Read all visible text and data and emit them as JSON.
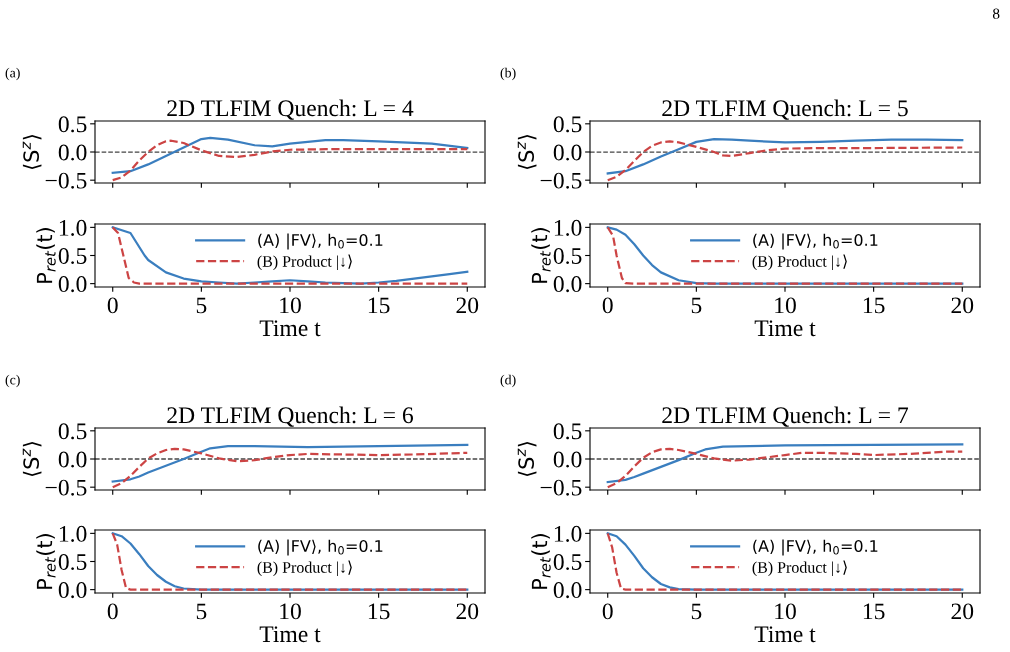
{
  "chart_data": [
    {
      "type": "line",
      "title": "2D TLFIM Quench: L = 4",
      "ylabel": "⟨S$^{z}$⟩",
      "annotations": [
        "(a)",
        "8"
      ],
      "xlim": [
        -1,
        21
      ],
      "xticks": [
        0,
        5,
        10,
        15,
        20
      ],
      "ylim": [
        -0.55,
        0.55
      ],
      "yticks": [
        {
          "value": -0.5,
          "label": "−0.5"
        },
        {
          "value": 0,
          "label": "0.0"
        },
        {
          "value": 0.5,
          "label": "0.5"
        }
      ],
      "tick_labels": "y",
      "grid": false,
      "legend": false,
      "ref_lines": [
        {
          "axis": "y",
          "value": 0,
          "color": "#444444",
          "line_style": "dashed"
        }
      ],
      "series": [
        {
          "color": "#3a7ebf",
          "line_style": "solid",
          "x": [
            0,
            1,
            2,
            3,
            4,
            5,
            5.5,
            6.5,
            8,
            9,
            10,
            12,
            13,
            15,
            18,
            20
          ],
          "values": [
            -0.37,
            -0.34,
            -0.22,
            -0.07,
            0.08,
            0.23,
            0.25,
            0.22,
            0.12,
            0.1,
            0.15,
            0.21,
            0.21,
            0.19,
            0.15,
            0.07
          ]
        },
        {
          "color": "#cc4444",
          "line_style": "dashed",
          "x": [
            0,
            0.5,
            1,
            1.5,
            2,
            2.5,
            3,
            3.3,
            4,
            5,
            6,
            7,
            8,
            9,
            10,
            12,
            20
          ],
          "values": [
            -0.5,
            -0.45,
            -0.33,
            -0.15,
            0.0,
            0.12,
            0.19,
            0.2,
            0.16,
            0.03,
            -0.07,
            -0.09,
            -0.05,
            0.01,
            0.04,
            0.05,
            0.05
          ]
        }
      ]
    },
    {
      "type": "line",
      "ylabel": "P$_{ret}$(t)",
      "xlabel": "Time t",
      "xlim": [
        -1,
        21
      ],
      "xticks": [
        0,
        5,
        10,
        15,
        20
      ],
      "ylim": [
        -0.06,
        1.06
      ],
      "yticks": [
        {
          "value": 0,
          "label": "0.0"
        },
        {
          "value": 0.5,
          "label": "0.5"
        },
        {
          "value": 1,
          "label": "1.0"
        }
      ],
      "grid": false,
      "legend": "top",
      "series": [
        {
          "name": "(A) |FV⟩, h$_{0}$=0.1",
          "color": "#3a7ebf",
          "line_style": "solid",
          "x": [
            0,
            1,
            1.8,
            2,
            3,
            4,
            5,
            6,
            7,
            8,
            9,
            10,
            11,
            12,
            13,
            14,
            15,
            16,
            17,
            18,
            19,
            20
          ],
          "values": [
            1.0,
            0.9,
            0.5,
            0.42,
            0.2,
            0.09,
            0.04,
            0.02,
            0.0,
            0.02,
            0.04,
            0.06,
            0.04,
            0.02,
            0.01,
            0.0,
            0.02,
            0.05,
            0.09,
            0.13,
            0.17,
            0.21
          ]
        },
        {
          "name": "(B) Product |↓⟩",
          "color": "#cc4444",
          "line_style": "dashed",
          "x": [
            0,
            0.3,
            0.6,
            0.9,
            1.2,
            1.5,
            20
          ],
          "values": [
            1.0,
            0.9,
            0.5,
            0.1,
            0.02,
            0.0,
            0.0
          ]
        }
      ]
    },
    {
      "type": "line",
      "title": "2D TLFIM Quench: L = 5",
      "ylabel": "⟨S$^{z}$⟩",
      "annotations": [
        "(b)"
      ],
      "xlim": [
        -1,
        21
      ],
      "xticks": [
        0,
        5,
        10,
        15,
        20
      ],
      "ylim": [
        -0.55,
        0.55
      ],
      "yticks": [
        {
          "value": -0.5,
          "label": "−0.5"
        },
        {
          "value": 0,
          "label": "0.0"
        },
        {
          "value": 0.5,
          "label": "0.5"
        }
      ],
      "tick_labels": "y",
      "grid": false,
      "legend": false,
      "ref_lines": [
        {
          "axis": "y",
          "value": 0,
          "color": "#444444",
          "line_style": "dashed"
        }
      ],
      "series": [
        {
          "color": "#3a7ebf",
          "line_style": "solid",
          "x": [
            0,
            1,
            2,
            3,
            4,
            5,
            6,
            7,
            8,
            10,
            12,
            14,
            16,
            18,
            20
          ],
          "values": [
            -0.38,
            -0.34,
            -0.22,
            -0.08,
            0.05,
            0.18,
            0.23,
            0.22,
            0.2,
            0.17,
            0.18,
            0.2,
            0.22,
            0.22,
            0.21
          ]
        },
        {
          "color": "#cc4444",
          "line_style": "dashed",
          "x": [
            0,
            0.5,
            1,
            1.5,
            2,
            2.5,
            3,
            3.5,
            4,
            5,
            6,
            6.5,
            7,
            8,
            9,
            10,
            12,
            15,
            20
          ],
          "values": [
            -0.5,
            -0.44,
            -0.32,
            -0.16,
            0.0,
            0.11,
            0.17,
            0.19,
            0.17,
            0.09,
            0.0,
            -0.06,
            -0.07,
            -0.02,
            0.03,
            0.06,
            0.07,
            0.07,
            0.08
          ]
        }
      ]
    },
    {
      "type": "line",
      "ylabel": "P$_{ret}$(t)",
      "xlabel": "Time t",
      "xlim": [
        -1,
        21
      ],
      "xticks": [
        0,
        5,
        10,
        15,
        20
      ],
      "ylim": [
        -0.06,
        1.06
      ],
      "yticks": [
        {
          "value": 0,
          "label": "0.0"
        },
        {
          "value": 0.5,
          "label": "0.5"
        },
        {
          "value": 1,
          "label": "1.0"
        }
      ],
      "grid": false,
      "legend": "top",
      "series": [
        {
          "name": "(A) |FV⟩, h$_{0}$=0.1",
          "color": "#3a7ebf",
          "line_style": "solid",
          "x": [
            0,
            0.5,
            1,
            1.5,
            2,
            2.5,
            3,
            4,
            5,
            6,
            20
          ],
          "values": [
            1.0,
            0.96,
            0.87,
            0.7,
            0.5,
            0.33,
            0.2,
            0.06,
            0.01,
            0.0,
            0.0
          ]
        },
        {
          "name": "(B) Product |↓⟩",
          "color": "#cc4444",
          "line_style": "dashed",
          "x": [
            0,
            0.3,
            0.5,
            0.8,
            1,
            1.5,
            20
          ],
          "values": [
            1.0,
            0.85,
            0.5,
            0.1,
            0.01,
            0.0,
            0.0
          ]
        }
      ]
    },
    {
      "type": "line",
      "title": "2D TLFIM Quench: L = 6",
      "ylabel": "⟨S$^{z}$⟩",
      "annotations": [
        "(c)"
      ],
      "xlim": [
        -1,
        21
      ],
      "xticks": [
        0,
        5,
        10,
        15,
        20
      ],
      "ylim": [
        -0.55,
        0.55
      ],
      "yticks": [
        {
          "value": -0.5,
          "label": "−0.5"
        },
        {
          "value": 0,
          "label": "0.0"
        },
        {
          "value": 0.5,
          "label": "0.5"
        }
      ],
      "tick_labels": "y",
      "grid": false,
      "legend": false,
      "ref_lines": [
        {
          "axis": "y",
          "value": 0,
          "color": "#444444",
          "line_style": "dashed"
        }
      ],
      "series": [
        {
          "color": "#3a7ebf",
          "line_style": "solid",
          "x": [
            0,
            1,
            1.5,
            2,
            3,
            4,
            5,
            5.5,
            6.5,
            8,
            11,
            15,
            20
          ],
          "values": [
            -0.4,
            -0.36,
            -0.31,
            -0.24,
            -0.12,
            0.0,
            0.13,
            0.19,
            0.23,
            0.23,
            0.21,
            0.23,
            0.25
          ]
        },
        {
          "color": "#cc4444",
          "line_style": "dashed",
          "x": [
            0,
            0.5,
            1,
            1.5,
            2,
            2.5,
            3,
            3.5,
            4,
            5,
            6,
            7,
            8,
            9,
            10,
            11,
            13,
            15,
            17,
            20
          ],
          "values": [
            -0.5,
            -0.43,
            -0.3,
            -0.14,
            0.01,
            0.1,
            0.16,
            0.18,
            0.17,
            0.1,
            0.01,
            -0.04,
            -0.02,
            0.03,
            0.07,
            0.09,
            0.08,
            0.07,
            0.08,
            0.11
          ]
        }
      ]
    },
    {
      "type": "line",
      "ylabel": "P$_{ret}$(t)",
      "xlabel": "Time t",
      "xlim": [
        -1,
        21
      ],
      "xticks": [
        0,
        5,
        10,
        15,
        20
      ],
      "ylim": [
        -0.06,
        1.06
      ],
      "yticks": [
        {
          "value": 0,
          "label": "0.0"
        },
        {
          "value": 0.5,
          "label": "0.5"
        },
        {
          "value": 1,
          "label": "1.0"
        }
      ],
      "grid": false,
      "legend": "top",
      "series": [
        {
          "name": "(A) |FV⟩, h$_{0}$=0.1",
          "color": "#3a7ebf",
          "line_style": "solid",
          "x": [
            0,
            0.5,
            1,
            1.5,
            2,
            2.5,
            3,
            3.5,
            4,
            5,
            20
          ],
          "values": [
            1.0,
            0.95,
            0.82,
            0.63,
            0.42,
            0.26,
            0.14,
            0.06,
            0.02,
            0.0,
            0.0
          ]
        },
        {
          "name": "(B) Product |↓⟩",
          "color": "#cc4444",
          "line_style": "dashed",
          "x": [
            0,
            0.25,
            0.5,
            0.75,
            1,
            20
          ],
          "values": [
            1.0,
            0.8,
            0.35,
            0.03,
            0.0,
            0.0
          ]
        }
      ]
    },
    {
      "type": "line",
      "title": "2D TLFIM Quench: L = 7",
      "ylabel": "⟨S$^{z}$⟩",
      "annotations": [
        "(d)"
      ],
      "xlim": [
        -1,
        21
      ],
      "xticks": [
        0,
        5,
        10,
        15,
        20
      ],
      "ylim": [
        -0.55,
        0.55
      ],
      "yticks": [
        {
          "value": -0.5,
          "label": "−0.5"
        },
        {
          "value": 0,
          "label": "0.0"
        },
        {
          "value": 0.5,
          "label": "0.5"
        }
      ],
      "tick_labels": "y",
      "grid": false,
      "legend": false,
      "ref_lines": [
        {
          "axis": "y",
          "value": 0,
          "color": "#444444",
          "line_style": "dashed"
        }
      ],
      "series": [
        {
          "color": "#3a7ebf",
          "line_style": "solid",
          "x": [
            0,
            1,
            1.5,
            2,
            3,
            4,
            5,
            5.5,
            6.5,
            8,
            10,
            15,
            20
          ],
          "values": [
            -0.41,
            -0.37,
            -0.32,
            -0.26,
            -0.14,
            -0.02,
            0.11,
            0.17,
            0.22,
            0.23,
            0.24,
            0.25,
            0.26
          ]
        },
        {
          "color": "#cc4444",
          "line_style": "dashed",
          "x": [
            0,
            0.5,
            1,
            1.5,
            2,
            2.5,
            3,
            3.5,
            4,
            5,
            6,
            7,
            8,
            9,
            10,
            11,
            12,
            14,
            15,
            17,
            19,
            20
          ],
          "values": [
            -0.5,
            -0.43,
            -0.3,
            -0.13,
            0.02,
            0.12,
            0.17,
            0.18,
            0.16,
            0.09,
            0.01,
            -0.03,
            -0.01,
            0.03,
            0.07,
            0.11,
            0.11,
            0.09,
            0.07,
            0.09,
            0.13,
            0.13
          ]
        }
      ]
    },
    {
      "type": "line",
      "ylabel": "P$_{ret}$(t)",
      "xlabel": "Time t",
      "xlim": [
        -1,
        21
      ],
      "xticks": [
        0,
        5,
        10,
        15,
        20
      ],
      "ylim": [
        -0.06,
        1.06
      ],
      "yticks": [
        {
          "value": 0,
          "label": "0.0"
        },
        {
          "value": 0.5,
          "label": "0.5"
        },
        {
          "value": 1,
          "label": "1.0"
        }
      ],
      "grid": false,
      "legend": "top",
      "series": [
        {
          "name": "(A) |FV⟩, h$_{0}$=0.1",
          "color": "#3a7ebf",
          "line_style": "solid",
          "x": [
            0,
            0.5,
            1,
            1.5,
            2,
            2.5,
            3,
            3.5,
            4,
            5,
            20
          ],
          "values": [
            1.0,
            0.95,
            0.8,
            0.6,
            0.38,
            0.22,
            0.1,
            0.04,
            0.01,
            0.0,
            0.0
          ]
        },
        {
          "name": "(B) Product |↓⟩",
          "color": "#cc4444",
          "line_style": "dashed",
          "x": [
            0,
            0.25,
            0.5,
            0.75,
            1,
            20
          ],
          "values": [
            1.0,
            0.75,
            0.3,
            0.02,
            0.0,
            0.0
          ]
        }
      ]
    }
  ]
}
